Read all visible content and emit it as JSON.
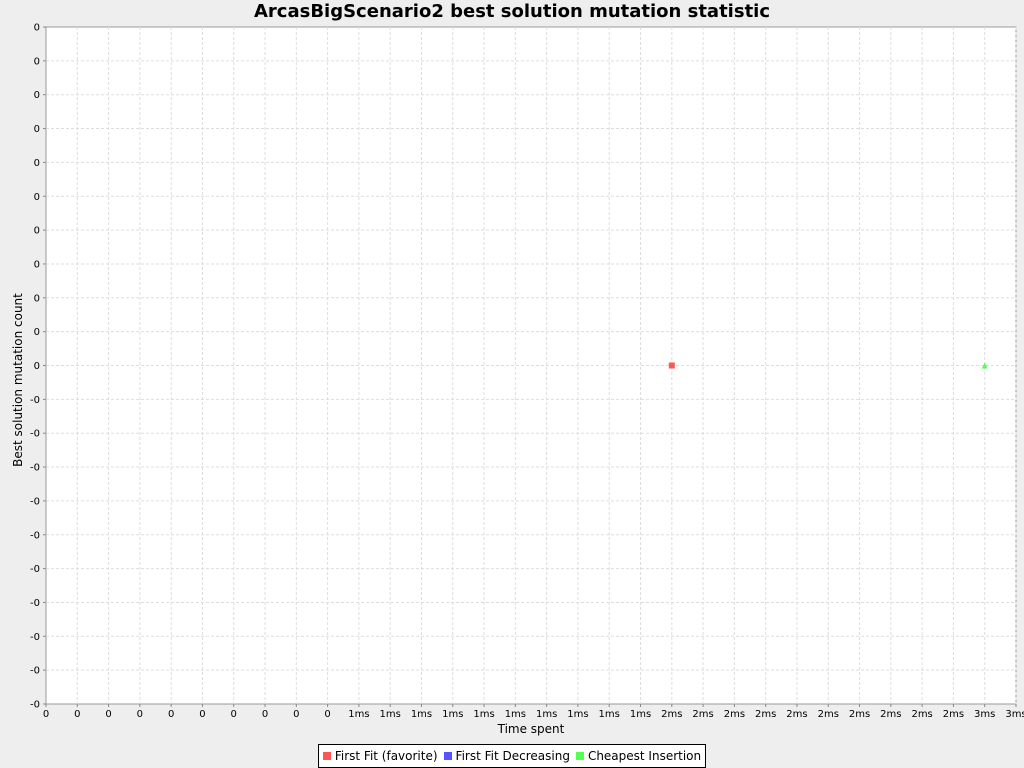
{
  "chart_data": {
    "type": "scatter",
    "title": "ArcasBigScenario2 best solution mutation statistic",
    "xlabel": "Time spent",
    "ylabel": "Best solution mutation count",
    "x_tick_labels": [
      "0",
      "0",
      "0",
      "0",
      "0",
      "0",
      "0",
      "0",
      "0",
      "0",
      "1ms",
      "1ms",
      "1ms",
      "1ms",
      "1ms",
      "1ms",
      "1ms",
      "1ms",
      "1ms",
      "1ms",
      "2ms",
      "2ms",
      "2ms",
      "2ms",
      "2ms",
      "2ms",
      "2ms",
      "2ms",
      "2ms",
      "2ms",
      "3ms",
      "3ms"
    ],
    "y_tick_labels": [
      "0",
      "0",
      "0",
      "0",
      "0",
      "0",
      "0",
      "0",
      "0",
      "0",
      "0",
      "-0",
      "-0",
      "-0",
      "-0",
      "-0",
      "-0",
      "-0",
      "-0",
      "-0",
      "-0"
    ],
    "x_unit": "ms",
    "xlim": [
      0,
      3.1
    ],
    "ylim": [
      -1,
      1
    ],
    "grid": true,
    "legend_position": "bottom",
    "series": [
      {
        "name": "First Fit (favorite)",
        "color": "#ff5555",
        "marker": "square",
        "points": [
          {
            "x": 2.0,
            "y": 0
          }
        ]
      },
      {
        "name": "First Fit Decreasing",
        "color": "#5555ff",
        "marker": "circle",
        "points": []
      },
      {
        "name": "Cheapest Insertion",
        "color": "#55ff55",
        "marker": "triangle",
        "points": [
          {
            "x": 3.0,
            "y": 0
          }
        ]
      }
    ]
  }
}
